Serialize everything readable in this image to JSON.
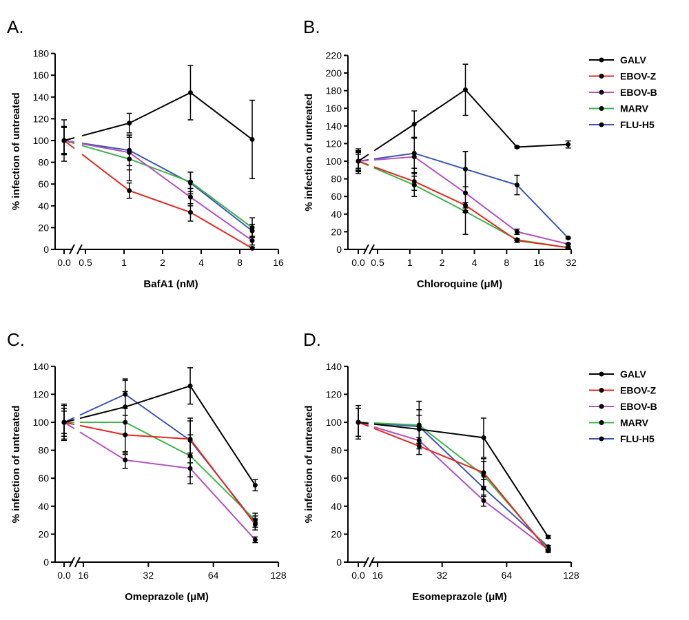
{
  "legend_items": [
    "GALV",
    "EBOV-Z",
    "EBOV-B",
    "MARV",
    "FLU-H5"
  ],
  "colors": {
    "GALV": "#000000",
    "EBOV-Z": "#e8261f",
    "EBOV-B": "#b34fc0",
    "MARV": "#3cb54a",
    "FLU-H5": "#3a55b4"
  },
  "chart_data": [
    {
      "type": "line",
      "panel": "A.",
      "xlabel": "BafA1 (nM)",
      "ylabel": "% infection of untreated",
      "x_scale": "log2 with axis break",
      "x_ticks": [
        "0.0",
        "0.5",
        "1",
        "2",
        "4",
        "8",
        "16"
      ],
      "ylim": [
        0,
        180
      ],
      "y_ticks": [
        0,
        20,
        40,
        60,
        80,
        100,
        120,
        140,
        160,
        180
      ],
      "x": [
        0,
        1.1,
        3.3,
        10
      ],
      "series": [
        {
          "name": "GALV",
          "values": [
            100,
            116,
            144,
            101
          ],
          "errors": [
            19,
            9,
            25,
            36
          ]
        },
        {
          "name": "EBOV-Z",
          "values": [
            100,
            54,
            34,
            1
          ],
          "errors": [
            12,
            7,
            8,
            1
          ]
        },
        {
          "name": "EBOV-B",
          "values": [
            100,
            89,
            48,
            8
          ],
          "errors": [
            12,
            16,
            8,
            4
          ]
        },
        {
          "name": "MARV",
          "values": [
            100,
            83,
            62,
            20
          ],
          "errors": [
            13,
            20,
            9,
            9
          ]
        },
        {
          "name": "FLU-H5",
          "values": [
            100,
            91,
            61,
            17
          ],
          "errors": [
            12,
            14,
            10,
            6
          ]
        }
      ]
    },
    {
      "type": "line",
      "panel": "B.",
      "xlabel": "Chloroquine (μM)",
      "ylabel": "% infection of untreated",
      "x_scale": "log2 with axis break",
      "x_ticks": [
        "0.0",
        "0.5",
        "1",
        "2",
        "4",
        "8",
        "16",
        "32"
      ],
      "ylim": [
        0,
        220
      ],
      "y_ticks": [
        0,
        20,
        40,
        60,
        80,
        100,
        120,
        140,
        160,
        180,
        200,
        220
      ],
      "x": [
        0,
        1.1,
        3.3,
        10,
        30
      ],
      "series": [
        {
          "name": "GALV",
          "values": [
            100,
            142,
            181,
            116,
            119
          ],
          "errors": [
            14,
            15,
            29,
            1,
            4
          ]
        },
        {
          "name": "EBOV-Z",
          "values": [
            100,
            77,
            50,
            10,
            2
          ],
          "errors": [
            8,
            10,
            3,
            2,
            1
          ]
        },
        {
          "name": "EBOV-B",
          "values": [
            100,
            105,
            64,
            20,
            6
          ],
          "errors": [
            12,
            22,
            47,
            3,
            1
          ]
        },
        {
          "name": "MARV",
          "values": [
            100,
            73,
            43,
            11,
            2
          ],
          "errors": [
            11,
            13,
            1,
            1,
            1
          ]
        },
        {
          "name": "FLU-H5",
          "values": [
            100,
            109,
            91,
            73,
            13
          ],
          "errors": [
            10,
            17,
            20,
            11,
            1
          ]
        }
      ]
    },
    {
      "type": "line",
      "panel": "C.",
      "xlabel": "Omeprazole (μM)",
      "ylabel": "% infection of untreated",
      "x_scale": "log2 with axis break",
      "x_ticks": [
        "0.0",
        "16",
        "32",
        "64",
        "128"
      ],
      "ylim": [
        0,
        140
      ],
      "y_ticks": [
        0,
        20,
        40,
        60,
        80,
        100,
        120,
        140
      ],
      "x": [
        0,
        25,
        50,
        100
      ],
      "series": [
        {
          "name": "GALV",
          "values": [
            100,
            111,
            126,
            55
          ],
          "errors": [
            12,
            20,
            13,
            4
          ]
        },
        {
          "name": "EBOV-Z",
          "values": [
            100,
            91,
            88,
            27
          ],
          "errors": [
            10,
            14,
            13,
            4
          ]
        },
        {
          "name": "EBOV-B",
          "values": [
            100,
            73,
            67,
            16
          ],
          "errors": [
            10,
            6,
            11,
            2
          ]
        },
        {
          "name": "MARV",
          "values": [
            100,
            100,
            76,
            30
          ],
          "errors": [
            13,
            22,
            15,
            5
          ]
        },
        {
          "name": "FLU-H5",
          "values": [
            100,
            120,
            87,
            28
          ],
          "errors": [
            8,
            10,
            16,
            5
          ]
        }
      ]
    },
    {
      "type": "line",
      "panel": "D.",
      "xlabel": "Esomeprazole (μM)",
      "ylabel": "% infection of untreated",
      "x_scale": "log2 with axis break",
      "x_ticks": [
        "0.0",
        "16",
        "32",
        "64",
        "128"
      ],
      "ylim": [
        0,
        140
      ],
      "y_ticks": [
        0,
        20,
        40,
        60,
        80,
        100,
        120,
        140
      ],
      "x": [
        0,
        25,
        50,
        100
      ],
      "series": [
        {
          "name": "GALV",
          "values": [
            100,
            95,
            89,
            18
          ],
          "errors": [
            12,
            10,
            14,
            1
          ]
        },
        {
          "name": "EBOV-Z",
          "values": [
            100,
            83,
            64,
            8
          ],
          "errors": [
            10,
            6,
            10,
            1
          ]
        },
        {
          "name": "EBOV-B",
          "values": [
            100,
            87,
            44,
            9
          ],
          "errors": [
            10,
            10,
            4,
            1
          ]
        },
        {
          "name": "MARV",
          "values": [
            100,
            98,
            62,
            9
          ],
          "errors": [
            10,
            17,
            10,
            1
          ]
        },
        {
          "name": "FLU-H5",
          "values": [
            100,
            97,
            53,
            11
          ],
          "errors": [
            10,
            12,
            6,
            1
          ]
        }
      ]
    }
  ]
}
